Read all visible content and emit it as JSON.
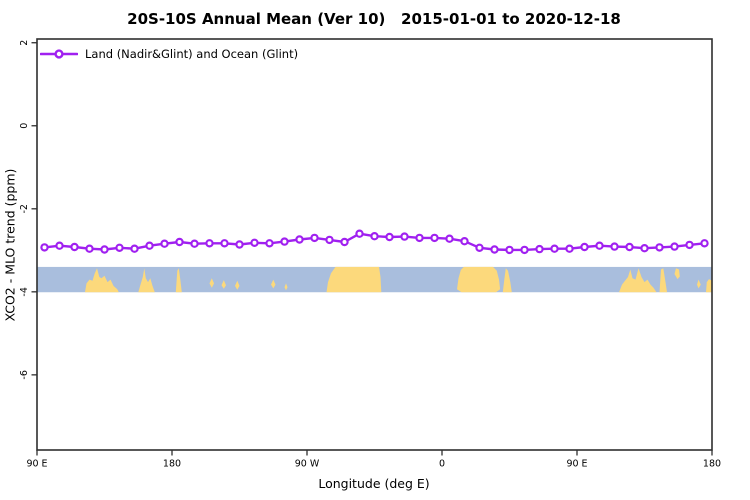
{
  "chart_data": {
    "type": "line",
    "title": "20S-10S Annual Mean (Ver 10)   2015-01-01 to 2020-12-18",
    "grid": false,
    "frame_color": "#2F2F2F",
    "x_axis": {
      "label": "Longitude (deg E)",
      "range": [
        90,
        540
      ],
      "ticks": [
        {
          "lon": 90,
          "label": "90 E"
        },
        {
          "lon": 180,
          "label": "180"
        },
        {
          "lon": 270,
          "label": "90 W"
        },
        {
          "lon": 360,
          "label": "0"
        },
        {
          "lon": 450,
          "label": "90 E"
        },
        {
          "lon": 540,
          "label": "180"
        }
      ]
    },
    "y_axis": {
      "label": "XCO2 - MLO trend (ppm)",
      "range": [
        -7.81,
        2.09
      ],
      "ticks": [
        {
          "value": 2,
          "label": "2"
        },
        {
          "value": 0,
          "label": "0"
        },
        {
          "value": -2,
          "label": "-2"
        },
        {
          "value": -4,
          "label": "-4"
        },
        {
          "value": -6,
          "label": "-6"
        }
      ]
    },
    "legend": {
      "position": "top-left",
      "entries": [
        "Land (Nadir&Glint) and Ocean (Glint)"
      ]
    },
    "series": [
      {
        "name": "Land (Nadir&Glint) and Ocean (Glint)",
        "color": "#A020F0",
        "marker": "open-circle",
        "x": [
          95,
          105,
          115,
          125,
          135,
          145,
          155,
          165,
          175,
          185,
          195,
          205,
          215,
          225,
          235,
          245,
          255,
          265,
          275,
          285,
          295,
          305,
          315,
          325,
          335,
          345,
          355,
          365,
          375,
          385,
          395,
          405,
          415,
          425,
          435,
          445,
          455,
          465,
          475,
          485,
          495,
          505,
          515,
          525,
          535
        ],
        "values": [
          -2.93,
          -2.89,
          -2.92,
          -2.96,
          -2.98,
          -2.94,
          -2.96,
          -2.89,
          -2.84,
          -2.8,
          -2.84,
          -2.83,
          -2.83,
          -2.86,
          -2.82,
          -2.83,
          -2.79,
          -2.74,
          -2.7,
          -2.75,
          -2.8,
          -2.6,
          -2.66,
          -2.68,
          -2.67,
          -2.7,
          -2.7,
          -2.72,
          -2.78,
          -2.94,
          -2.98,
          -2.99,
          -2.99,
          -2.97,
          -2.96,
          -2.96,
          -2.92,
          -2.89,
          -2.91,
          -2.92,
          -2.95,
          -2.93,
          -2.91,
          -2.87,
          -2.83
        ]
      }
    ],
    "map_strip": {
      "description": "land-ocean strip map of the 20S-10S latitude band",
      "ocean_color": "#A9BEDD",
      "land_color": "#FCD97C",
      "value_top": -3.4,
      "value_bottom": -4.01,
      "land_patches": [
        {
          "name": "australia-nw",
          "outline": [
            [
              122,
              0
            ],
            [
              123,
              0.35
            ],
            [
              125,
              0.5
            ],
            [
              127,
              0.45
            ],
            [
              128.5,
              0.75
            ],
            [
              130,
              0.95
            ],
            [
              131.5,
              0.6
            ],
            [
              133,
              0.55
            ],
            [
              135,
              0.65
            ],
            [
              137,
              0.4
            ],
            [
              139,
              0.5
            ],
            [
              141,
              0.25
            ],
            [
              143.5,
              0.12
            ],
            [
              144.5,
              0
            ]
          ]
        },
        {
          "name": "melanesia-islands",
          "outline": [
            [
              157.5,
              0
            ],
            [
              159,
              0.3
            ],
            [
              160.5,
              0.6
            ],
            [
              161.5,
              0.95
            ],
            [
              162.5,
              0.55
            ],
            [
              164,
              0.4
            ],
            [
              165.5,
              0.55
            ],
            [
              167,
              0.25
            ],
            [
              168.5,
              0
            ]
          ]
        },
        {
          "name": "fiji",
          "outline": [
            [
              182.5,
              0
            ],
            [
              183.5,
              0.85
            ],
            [
              184.5,
              0.95
            ],
            [
              185.5,
              0.5
            ],
            [
              186.5,
              0
            ]
          ]
        },
        {
          "name": "samoa",
          "outline": [
            [
              205,
              0.35
            ],
            [
              206.5,
              0.55
            ],
            [
              208,
              0.35
            ],
            [
              206.5,
              0.18
            ]
          ]
        },
        {
          "name": "cook-islands",
          "outline": [
            [
              213,
              0.28
            ],
            [
              214.5,
              0.48
            ],
            [
              216,
              0.28
            ],
            [
              214.5,
              0.14
            ]
          ]
        },
        {
          "name": "french-polynesia",
          "outline": [
            [
              222,
              0.25
            ],
            [
              223.5,
              0.45
            ],
            [
              225,
              0.25
            ],
            [
              223.5,
              0.1
            ]
          ]
        },
        {
          "name": "tuamotu",
          "outline": [
            [
              246,
              0.3
            ],
            [
              247.5,
              0.5
            ],
            [
              249,
              0.3
            ],
            [
              247.5,
              0.15
            ]
          ]
        },
        {
          "name": "pitcairn",
          "outline": [
            [
              255,
              0.2
            ],
            [
              256,
              0.35
            ],
            [
              257,
              0.2
            ],
            [
              256,
              0.08
            ]
          ]
        },
        {
          "name": "south-america",
          "outline": [
            [
              283,
              0
            ],
            [
              284,
              0.4
            ],
            [
              286,
              0.75
            ],
            [
              289,
              1
            ],
            [
              318,
              1
            ],
            [
              319,
              0.6
            ],
            [
              319.5,
              0
            ]
          ]
        },
        {
          "name": "africa",
          "outline": [
            [
              370,
              0.12
            ],
            [
              371,
              0.55
            ],
            [
              372.5,
              0.88
            ],
            [
              374.5,
              1
            ],
            [
              394,
              1
            ],
            [
              396.5,
              0.85
            ],
            [
              398,
              0.5
            ],
            [
              398.7,
              0.12
            ],
            [
              396,
              0
            ],
            [
              373,
              0
            ]
          ]
        },
        {
          "name": "madagascar",
          "outline": [
            [
              400.5,
              0
            ],
            [
              401.5,
              0.5
            ],
            [
              402.5,
              0.95
            ],
            [
              404,
              0.85
            ],
            [
              405.5,
              0.4
            ],
            [
              406.5,
              0
            ]
          ]
        },
        {
          "name": "australia-wrap",
          "outline": [
            [
              478,
              0
            ],
            [
              480,
              0.3
            ],
            [
              482,
              0.45
            ],
            [
              484,
              0.6
            ],
            [
              485.5,
              0.9
            ],
            [
              487,
              0.55
            ],
            [
              489,
              0.5
            ],
            [
              491,
              0.95
            ],
            [
              493,
              0.6
            ],
            [
              495,
              0.4
            ],
            [
              497,
              0.5
            ],
            [
              499,
              0.3
            ],
            [
              501,
              0.18
            ],
            [
              503,
              0
            ]
          ]
        },
        {
          "name": "coral-sea-spike",
          "outline": [
            [
              505,
              0
            ],
            [
              506,
              0.9
            ],
            [
              507.5,
              0.95
            ],
            [
              509,
              0.4
            ],
            [
              510,
              0
            ]
          ]
        },
        {
          "name": "island-blob",
          "outline": [
            [
              515,
              0.72
            ],
            [
              516,
              0.95
            ],
            [
              518,
              0.9
            ],
            [
              518.5,
              0.62
            ],
            [
              517,
              0.52
            ]
          ]
        },
        {
          "name": "speck-east",
          "outline": [
            [
              530,
              0.3
            ],
            [
              531,
              0.5
            ],
            [
              532.5,
              0.3
            ],
            [
              531,
              0.15
            ]
          ]
        },
        {
          "name": "corner-fiji-wrap",
          "outline": [
            [
              536,
              0
            ],
            [
              536.5,
              0.4
            ],
            [
              538,
              0.52
            ],
            [
              540,
              0.45
            ],
            [
              540,
              0
            ]
          ]
        }
      ]
    }
  }
}
